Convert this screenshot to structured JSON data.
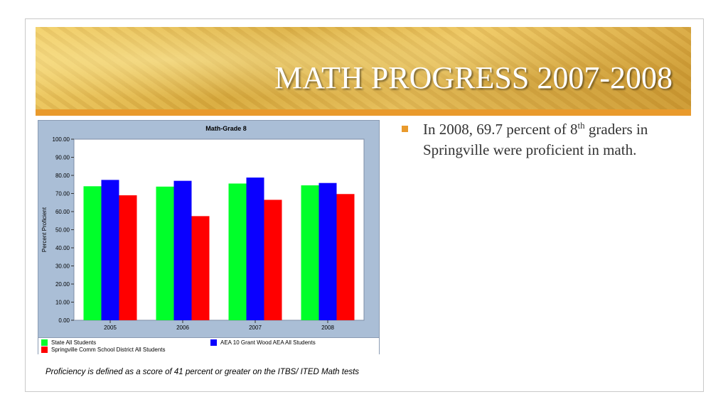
{
  "slide": {
    "title": "MATH PROGRESS 2007-2008",
    "bullet": {
      "text_before": "In 2008, 69.7 percent of 8",
      "superscript": "th",
      "text_after": " graders in Springville were proficient in math."
    },
    "footnote": "Proficiency is defined as a score of 41 percent or greater on the ITBS/ ITED Math tests"
  },
  "colors": {
    "accent": "#e99a2c",
    "chart_background": "#aabed6",
    "series_state": "#00ff2a",
    "series_aea": "#0a00ff",
    "series_district": "#ff0000"
  },
  "chart_data": {
    "type": "bar",
    "title": "Math-Grade 8",
    "xlabel": "",
    "ylabel": "Percent Proficient",
    "categories": [
      "2005",
      "2006",
      "2007",
      "2008"
    ],
    "ylim": [
      0,
      100
    ],
    "yticks": [
      "0.00",
      "10.00",
      "20.00",
      "30.00",
      "40.00",
      "50.00",
      "60.00",
      "70.00",
      "80.00",
      "90.00",
      "100.00"
    ],
    "grid": false,
    "legend_position": "bottom",
    "series": [
      {
        "name": "State All Students",
        "color": "#00ff2a",
        "values": [
          74.0,
          73.8,
          75.5,
          74.5
        ]
      },
      {
        "name": "AEA 10 Grant Wood AEA All Students",
        "color": "#0a00ff",
        "values": [
          77.5,
          77.0,
          78.8,
          75.8
        ]
      },
      {
        "name": "Springville Comm School District All Students",
        "color": "#ff0000",
        "values": [
          69.0,
          57.5,
          66.5,
          69.7
        ]
      }
    ]
  }
}
